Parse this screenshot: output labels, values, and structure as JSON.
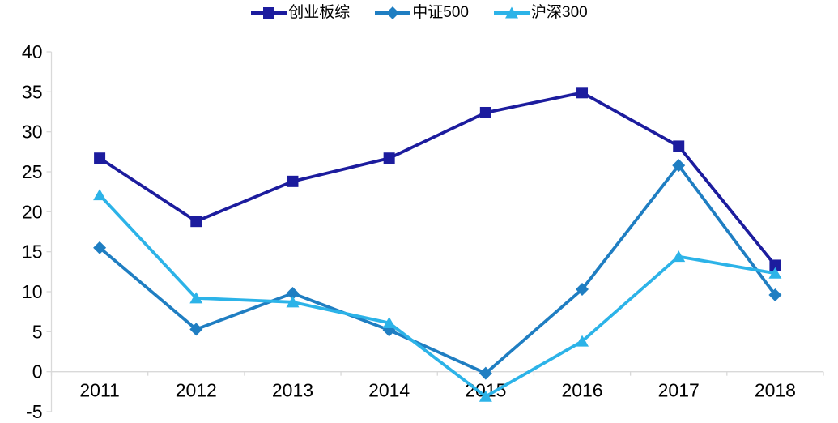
{
  "chart_data": {
    "type": "line",
    "categories": [
      "2011",
      "2012",
      "2013",
      "2014",
      "2015",
      "2016",
      "2017",
      "2018"
    ],
    "series": [
      {
        "name": "创业板综",
        "marker": "square",
        "color": "#1C1C9E",
        "values": [
          26.7,
          18.8,
          23.8,
          26.7,
          32.4,
          34.9,
          28.2,
          13.3
        ]
      },
      {
        "name": "中证500",
        "marker": "diamond",
        "color": "#1F7EC2",
        "values": [
          15.5,
          5.3,
          9.8,
          5.2,
          -0.2,
          10.3,
          25.8,
          9.6
        ]
      },
      {
        "name": "沪深300",
        "marker": "triangle",
        "color": "#2CB3E8",
        "values": [
          22.1,
          9.2,
          8.7,
          6.1,
          -3.1,
          3.8,
          14.4,
          12.3
        ]
      }
    ],
    "ylim": [
      -5,
      40
    ],
    "ytick_values": [
      -5,
      0,
      5,
      10,
      15,
      20,
      25,
      30,
      35,
      40
    ],
    "xlabel": "",
    "ylabel": "",
    "legend_position": "top",
    "grid": false,
    "axis_color": "#D9D9D9",
    "label_color": "#000000"
  }
}
